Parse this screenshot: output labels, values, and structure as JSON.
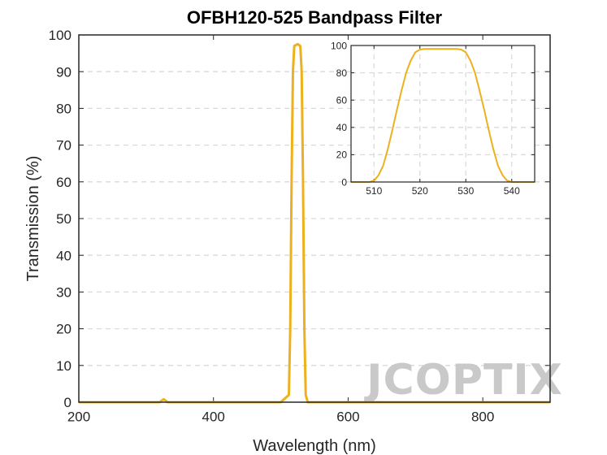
{
  "chart_data": [
    {
      "type": "line",
      "title": "OFBH120-525 Bandpass Filter",
      "xlabel": "Wavelength (nm)",
      "ylabel": "Transmission (%)",
      "xlim": [
        200,
        900
      ],
      "ylim": [
        0,
        100
      ],
      "xticks": [
        200,
        400,
        600,
        800
      ],
      "yticks": [
        0,
        10,
        20,
        30,
        40,
        50,
        60,
        70,
        80,
        90,
        100
      ],
      "grid": "horizontal dashed",
      "color": "#EDB120",
      "series": [
        {
          "x": [
            200,
            320,
            326,
            332,
            340,
            500,
            512,
            514,
            516,
            518,
            520,
            525,
            529,
            531,
            533,
            535,
            537,
            540,
            560,
            700,
            900
          ],
          "y": [
            0,
            0,
            0.8,
            0,
            0,
            0,
            2,
            20,
            60,
            90,
            97,
            97.5,
            97,
            90,
            60,
            20,
            2,
            0,
            0,
            0,
            0
          ]
        }
      ]
    },
    {
      "type": "line",
      "title": "",
      "xlabel": "",
      "ylabel": "",
      "xlim": [
        505,
        545
      ],
      "ylim": [
        0,
        100
      ],
      "xticks": [
        510,
        520,
        530,
        540
      ],
      "yticks": [
        0,
        20,
        40,
        60,
        80,
        100
      ],
      "grid": "both dashed",
      "color": "#EDB120",
      "series": [
        {
          "x": [
            505,
            508,
            509,
            510,
            511,
            512,
            513,
            514,
            515,
            516,
            517,
            518,
            519,
            520,
            521,
            528,
            529,
            530,
            531,
            532,
            533,
            534,
            535,
            536,
            537,
            538,
            539,
            540,
            541,
            545
          ],
          "y": [
            0,
            0,
            0,
            1,
            5,
            12,
            24,
            38,
            53,
            67,
            80,
            89,
            95,
            97,
            97.5,
            97.5,
            97,
            95,
            89,
            80,
            67,
            53,
            38,
            24,
            12,
            5,
            1,
            0,
            0,
            0
          ]
        }
      ]
    }
  ],
  "watermark": "JCOPTIX"
}
